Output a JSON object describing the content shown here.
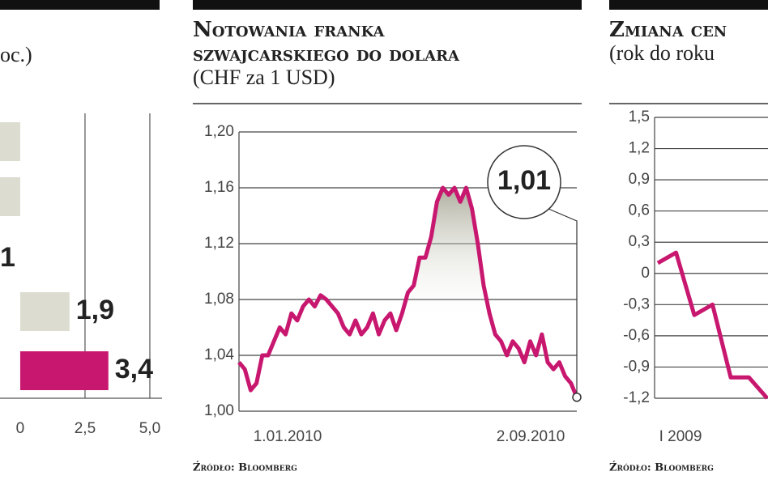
{
  "chart_data": [
    {
      "type": "bar",
      "subtitle": "oc.)",
      "categories": [
        null,
        null,
        null,
        null,
        null
      ],
      "values": [
        -0.8,
        -0.8,
        null,
        1.9,
        3.4
      ],
      "value_labels": [
        null,
        null,
        null,
        "1,9",
        "3,4"
      ],
      "colors": [
        "#dcdcd0",
        "#dcdcd0",
        null,
        "#dcdcd0",
        "#c8176f"
      ],
      "annotations": [
        "1"
      ],
      "xlim": [
        -0.78,
        5.47
      ],
      "xticks": [
        0,
        {
          "value": 2.5,
          "label": "2,5"
        },
        {
          "value": 5,
          "label": "5,0"
        }
      ],
      "grid": true
    },
    {
      "type": "line",
      "title": [
        "Notowania franka",
        "szwajcarskiego do dolara"
      ],
      "subtitle": "(CHF za 1 USD)",
      "x_labels": [
        "1.01.2010",
        "2.09.2010"
      ],
      "series": [
        {
          "name": null,
          "color": "#c8176f",
          "values": [
            1.035,
            1.03,
            1.015,
            1.02,
            1.04,
            1.04,
            1.05,
            1.06,
            1.055,
            1.07,
            1.065,
            1.075,
            1.08,
            1.075,
            1.083,
            1.08,
            1.075,
            1.07,
            1.06,
            1.055,
            1.065,
            1.055,
            1.06,
            1.07,
            1.055,
            1.065,
            1.07,
            1.058,
            1.07,
            1.085,
            1.09,
            1.11,
            1.11,
            1.125,
            1.15,
            1.16,
            1.155,
            1.16,
            1.15,
            1.16,
            1.145,
            1.12,
            1.09,
            1.07,
            1.055,
            1.05,
            1.04,
            1.05,
            1.045,
            1.035,
            1.05,
            1.04,
            1.055,
            1.035,
            1.03,
            1.035,
            1.025,
            1.02,
            1.01
          ]
        }
      ],
      "annotations": [
        "1,01"
      ],
      "source": "Źródło: Bloomberg",
      "ylim": [
        1.0,
        1.2
      ],
      "yticks": [
        {
          "value": 1.0,
          "label": "1,00"
        },
        {
          "value": 1.04,
          "label": "1,04"
        },
        {
          "value": 1.08,
          "label": "1,08"
        },
        {
          "value": 1.12,
          "label": "1,12"
        },
        {
          "value": 1.16,
          "label": "1,16"
        },
        {
          "value": 1.2,
          "label": "1,20"
        }
      ],
      "grid": true
    },
    {
      "type": "line",
      "title": [
        "Zmiana cen"
      ],
      "subtitle": "(rok do roku",
      "x_labels": [
        "I 2009"
      ],
      "series": [
        {
          "name": null,
          "color": "#c8176f",
          "values": [
            0.1,
            0.2,
            -0.4,
            -0.3,
            -1.0,
            -1.0,
            -1.2
          ]
        }
      ],
      "source": "Źródło: Bloomberg",
      "ylim": [
        -1.2,
        1.5
      ],
      "yticks": [
        {
          "value": 1.5,
          "label": "1,5"
        },
        {
          "value": 1.2,
          "label": "1,2"
        },
        {
          "value": 0.9,
          "label": "0,9"
        },
        {
          "value": 0.6,
          "label": "0,6"
        },
        {
          "value": 0.3,
          "label": "0,3"
        },
        0,
        {
          "value": -0.3,
          "label": "-0,3"
        },
        {
          "value": -0.6,
          "label": "-0,6"
        },
        {
          "value": -0.9,
          "label": "-0,9"
        },
        {
          "value": -1.2,
          "label": "-1,2"
        }
      ],
      "grid": true
    }
  ]
}
